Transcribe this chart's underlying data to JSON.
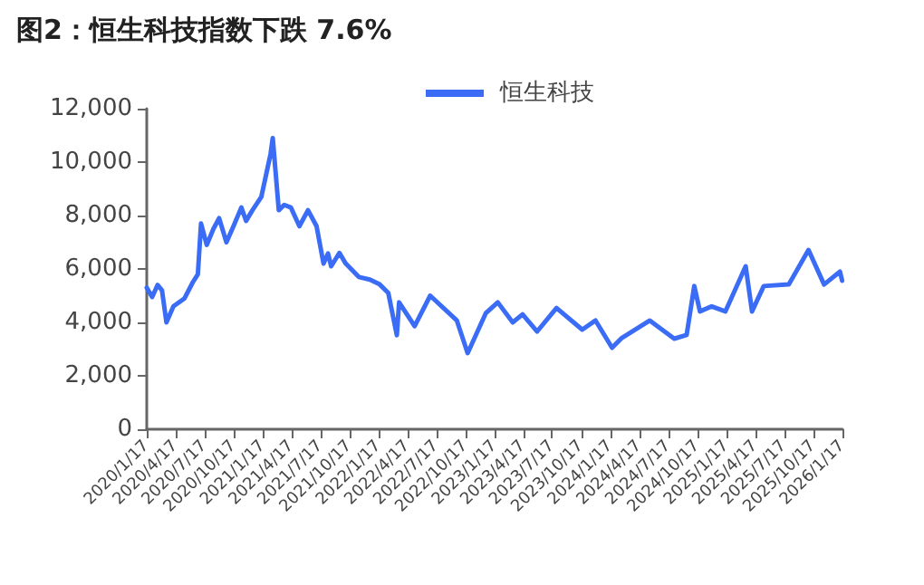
{
  "chart_data": {
    "type": "line",
    "title": "图2：恒生科技指数下跌 7.6%",
    "legend": "top",
    "grid": false,
    "marker": "none",
    "line_style": "solid",
    "x": [
      "2020-01-17",
      "2020-02-03",
      "2020-02-20",
      "2020-03-05",
      "2020-03-19",
      "2020-04-10",
      "2020-05-15",
      "2020-06-10",
      "2020-06-26",
      "2020-07-06",
      "2020-07-24",
      "2020-08-14",
      "2020-09-01",
      "2020-09-24",
      "2020-10-20",
      "2020-11-10",
      "2020-11-25",
      "2020-12-15",
      "2021-01-12",
      "2021-02-01",
      "2021-02-10",
      "2021-02-17",
      "2021-03-08",
      "2021-03-25",
      "2021-04-15",
      "2021-05-12",
      "2021-06-08",
      "2021-07-05",
      "2021-07-27",
      "2021-08-10",
      "2021-08-20",
      "2021-09-15",
      "2021-10-05",
      "2021-11-15",
      "2021-12-20",
      "2022-01-20",
      "2022-02-16",
      "2022-03-15",
      "2022-03-22",
      "2022-05-10",
      "2022-06-28",
      "2022-09-20",
      "2022-10-24",
      "2022-12-20",
      "2023-01-27",
      "2023-03-15",
      "2023-04-15",
      "2023-05-31",
      "2023-07-31",
      "2023-10-20",
      "2023-12-01",
      "2024-01-22",
      "2024-02-20",
      "2024-05-20",
      "2024-08-05",
      "2024-09-13",
      "2024-10-07",
      "2024-10-25",
      "2024-12-01",
      "2025-01-13",
      "2025-03-18",
      "2025-04-07",
      "2025-05-14",
      "2025-08-01",
      "2025-10-02",
      "2025-11-20",
      "2026-01-09",
      "2026-01-16"
    ],
    "series": [
      {
        "name": "恒生科技",
        "color": "#3a6cf5",
        "values": [
          5300,
          4950,
          5400,
          5200,
          4000,
          4600,
          4900,
          5500,
          5800,
          7700,
          6900,
          7500,
          7900,
          7000,
          7700,
          8300,
          7800,
          8200,
          8700,
          9800,
          10300,
          10900,
          8200,
          8400,
          8300,
          7600,
          8200,
          7600,
          6200,
          6580,
          6100,
          6600,
          6200,
          5700,
          5600,
          5420,
          5100,
          3520,
          4750,
          3860,
          5000,
          4070,
          2850,
          4340,
          4750,
          4000,
          4300,
          3660,
          4540,
          3730,
          4070,
          3050,
          3400,
          4070,
          3390,
          3530,
          5360,
          4410,
          4600,
          4410,
          6100,
          4410,
          5360,
          5420,
          6710,
          5420,
          5900,
          5560
        ]
      }
    ],
    "xlim": [
      "2020-01-17",
      "2026-01-17"
    ],
    "xticks": [
      {
        "value": "2020-01-17",
        "label": "2020/1/17"
      },
      {
        "value": "2020-04-17",
        "label": "2020/4/17"
      },
      {
        "value": "2020-07-17",
        "label": "2020/7/17"
      },
      {
        "value": "2020-10-17",
        "label": "2020/10/17"
      },
      {
        "value": "2021-01-17",
        "label": "2021/1/17"
      },
      {
        "value": "2021-04-17",
        "label": "2021/4/17"
      },
      {
        "value": "2021-07-17",
        "label": "2021/7/17"
      },
      {
        "value": "2021-10-17",
        "label": "2021/10/17"
      },
      {
        "value": "2022-01-17",
        "label": "2022/1/17"
      },
      {
        "value": "2022-04-17",
        "label": "2022/4/17"
      },
      {
        "value": "2022-07-17",
        "label": "2022/7/17"
      },
      {
        "value": "2022-10-17",
        "label": "2022/10/17"
      },
      {
        "value": "2023-01-17",
        "label": "2023/1/17"
      },
      {
        "value": "2023-04-17",
        "label": "2023/4/17"
      },
      {
        "value": "2023-07-17",
        "label": "2023/7/17"
      },
      {
        "value": "2023-10-17",
        "label": "2023/10/17"
      },
      {
        "value": "2024-01-17",
        "label": "2024/1/17"
      },
      {
        "value": "2024-04-17",
        "label": "2024/4/17"
      },
      {
        "value": "2024-07-17",
        "label": "2024/7/17"
      },
      {
        "value": "2024-10-17",
        "label": "2024/10/17"
      },
      {
        "value": "2025-01-17",
        "label": "2025/1/17"
      },
      {
        "value": "2025-04-17",
        "label": "2025/4/17"
      },
      {
        "value": "2025-07-17",
        "label": "2025/7/17"
      },
      {
        "value": "2025-10-17",
        "label": "2025/10/17"
      },
      {
        "value": "2026-01-17",
        "label": "2026/1/17"
      }
    ],
    "ylim": [
      0,
      12000
    ],
    "yticks": [
      0,
      {
        "value": 2000,
        "label": "2,000"
      },
      {
        "value": 4000,
        "label": "4,000"
      },
      {
        "value": 6000,
        "label": "6,000"
      },
      {
        "value": 8000,
        "label": "8,000"
      },
      {
        "value": 10000,
        "label": "10,000"
      },
      {
        "value": 12000,
        "label": "12,000"
      }
    ]
  }
}
